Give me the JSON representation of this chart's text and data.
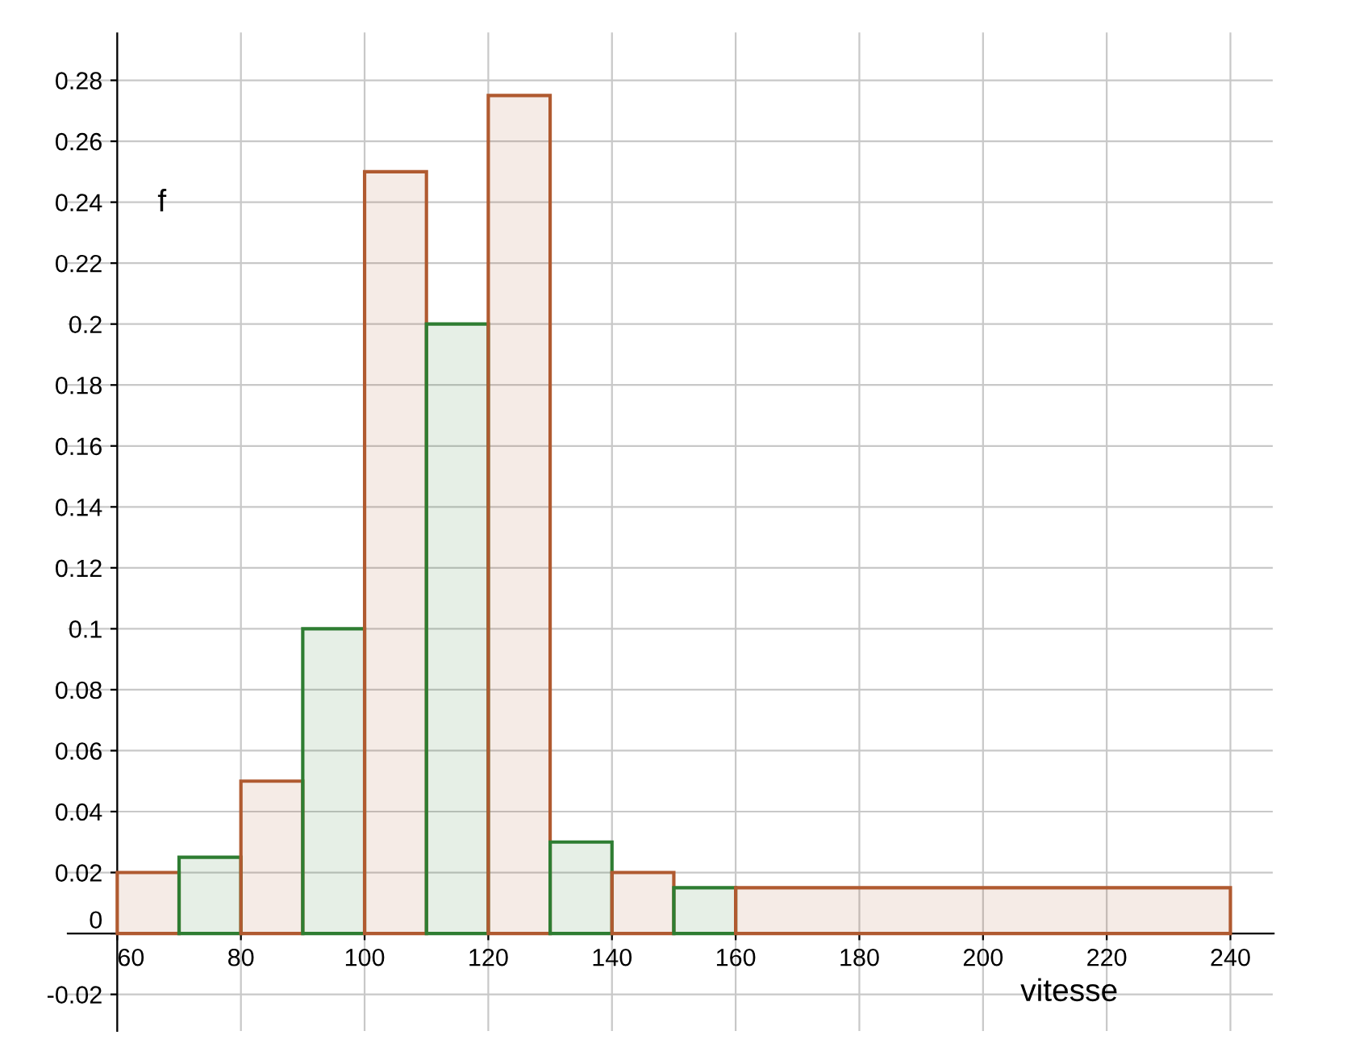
{
  "chart_data": {
    "type": "histogram",
    "xlabel": "vitesse",
    "ylabel": "f",
    "bins": [
      60,
      70,
      80,
      90,
      100,
      110,
      120,
      130,
      140,
      150,
      160,
      240
    ],
    "values": [
      0.02,
      0.025,
      0.05,
      0.1,
      0.25,
      0.2,
      0.275,
      0.03,
      0.02,
      0.015,
      0.015
    ],
    "colors": [
      "#b05a30",
      "#2e7d32",
      "#b05a30",
      "#2e7d32",
      "#b05a30",
      "#2e7d32",
      "#b05a30",
      "#2e7d32",
      "#b05a30",
      "#2e7d32",
      "#b05a30"
    ],
    "xlim": [
      52,
      247
    ],
    "ylim": [
      -0.032,
      0.296
    ],
    "xticks": [
      60,
      80,
      100,
      120,
      140,
      160,
      180,
      200,
      220,
      240
    ],
    "yticks": [
      -0.02,
      0,
      0.02,
      0.04,
      0.06,
      0.08,
      0.1,
      0.12,
      0.14,
      0.16,
      0.18,
      0.2,
      0.22,
      0.24,
      0.26,
      0.28
    ],
    "grid": true
  }
}
